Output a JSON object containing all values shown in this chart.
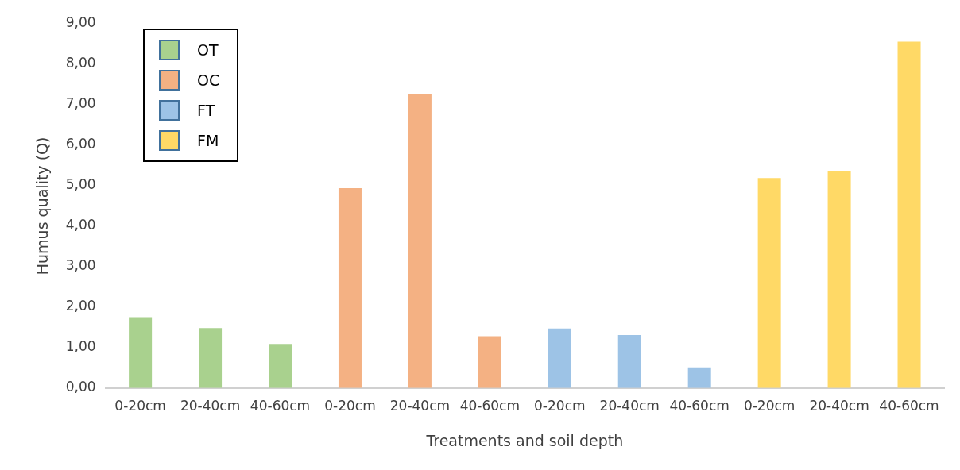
{
  "chart_data": {
    "type": "bar",
    "xlabel": "Treatments and soil depth",
    "ylabel": "Humus quality (Q)",
    "categories": [
      "0-20cm",
      "20-40cm",
      "40-60cm",
      "0-20cm",
      "20-40cm",
      "40-60cm",
      "0-20cm",
      "20-40cm",
      "40-60cm",
      "0-20cm",
      "20-40cm",
      "40-60cm"
    ],
    "series": [
      {
        "name": "OT",
        "color": "#a9d18e",
        "values": [
          1.75,
          1.48,
          1.09,
          null,
          null,
          null,
          null,
          null,
          null,
          null,
          null,
          null
        ]
      },
      {
        "name": "OC",
        "color": "#f4b183",
        "values": [
          null,
          null,
          null,
          4.94,
          7.26,
          1.28,
          null,
          null,
          null,
          null,
          null,
          null
        ]
      },
      {
        "name": "FT",
        "color": "#9dc3e6",
        "values": [
          null,
          null,
          null,
          null,
          null,
          null,
          1.47,
          1.31,
          0.51,
          null,
          null,
          null
        ]
      },
      {
        "name": "FM",
        "color": "#ffd966",
        "values": [
          null,
          null,
          null,
          null,
          null,
          null,
          null,
          null,
          null,
          5.19,
          5.35,
          8.56
        ]
      }
    ],
    "ylim": [
      0,
      9
    ],
    "yticks": [
      {
        "value": 0,
        "label": "0,00"
      },
      {
        "value": 1,
        "label": "1,00"
      },
      {
        "value": 2,
        "label": "2,00"
      },
      {
        "value": 3,
        "label": "3,00"
      },
      {
        "value": 4,
        "label": "4,00"
      },
      {
        "value": 5,
        "label": "5,00"
      },
      {
        "value": 6,
        "label": "6,00"
      },
      {
        "value": 7,
        "label": "7,00"
      },
      {
        "value": 8,
        "label": "8,00"
      },
      {
        "value": 9,
        "label": "9,00"
      }
    ],
    "legend": "top left"
  }
}
